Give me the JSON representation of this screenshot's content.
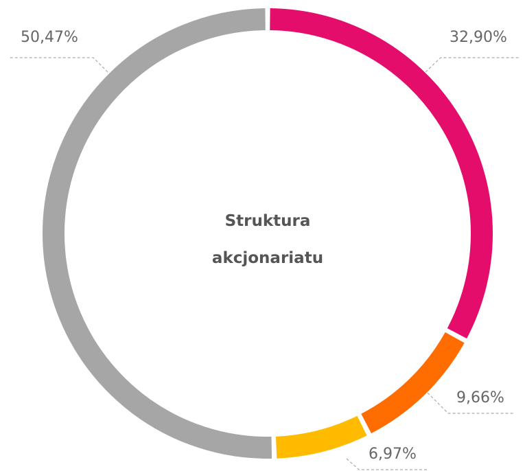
{
  "chart_data": {
    "type": "donut",
    "title": "Struktura akcjonariatu",
    "values": [
      32.9,
      9.66,
      6.97,
      50.47
    ],
    "value_labels": [
      "32,90%",
      "9,66%",
      "6,97%",
      "50,47%"
    ],
    "colors": [
      "#e50d6b",
      "#ff6d00",
      "#ffbb00",
      "#a6a6a6"
    ]
  }
}
